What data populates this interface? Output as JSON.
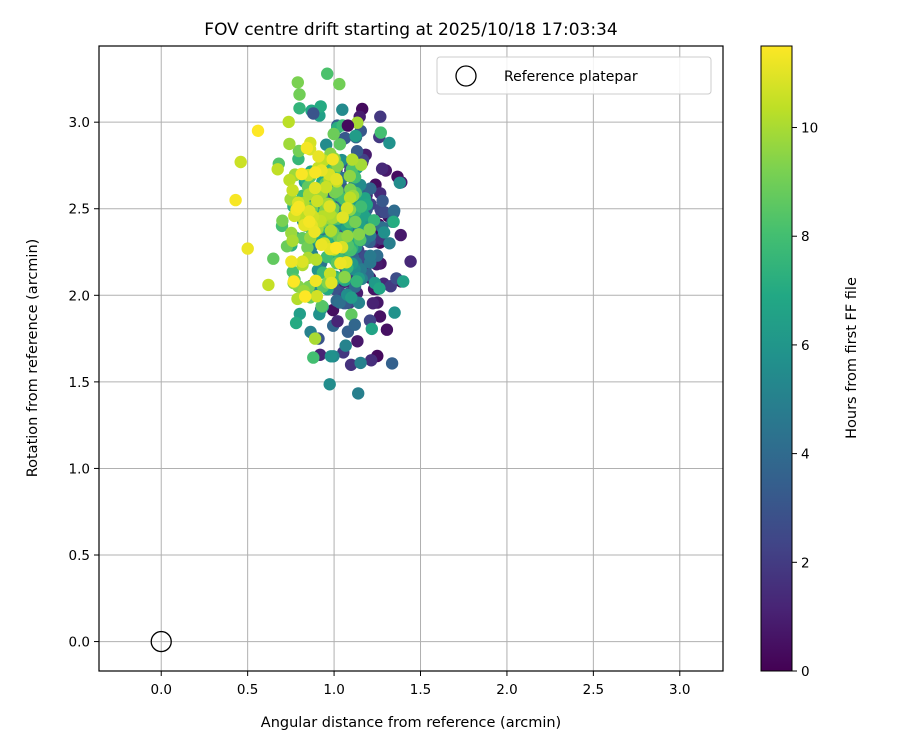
{
  "chart_data": {
    "type": "scatter",
    "title": "FOV centre drift starting at 2025/10/18 17:03:34",
    "xlabel": "Angular distance from reference (arcmin)",
    "ylabel": "Rotation from reference (arcmin)",
    "xlim": [
      -0.36,
      3.25
    ],
    "ylim": [
      -0.17,
      3.44
    ],
    "xticks": [
      "0.0",
      "0.5",
      "1.0",
      "1.5",
      "2.0",
      "2.5",
      "3.0"
    ],
    "yticks": [
      "0.0",
      "0.5",
      "1.0",
      "1.5",
      "2.0",
      "2.5",
      "3.0"
    ],
    "grid": true,
    "legend": {
      "placement": "top-right",
      "entries": [
        "Reference platepar"
      ]
    },
    "reference_point": {
      "x": 0.0,
      "y": 0.0
    },
    "colorbar": {
      "label": "Hours from first FF file",
      "range": [
        0,
        11.5
      ],
      "ticks": [
        "0",
        "2",
        "4",
        "6",
        "8",
        "10"
      ],
      "colormap": "viridis"
    },
    "cluster": {
      "point_count": 480,
      "x_center": 1.0,
      "x_spread": 0.18,
      "y_center": 2.4,
      "y_spread": 0.27
    },
    "highlighted_points": [
      {
        "x": 0.43,
        "y": 2.55,
        "hours": 11.4
      },
      {
        "x": 0.46,
        "y": 2.77,
        "hours": 10.6
      },
      {
        "x": 0.5,
        "y": 2.27,
        "hours": 11.2
      },
      {
        "x": 0.56,
        "y": 2.95,
        "hours": 11.5
      },
      {
        "x": 0.62,
        "y": 2.06,
        "hours": 10.5
      },
      {
        "x": 0.79,
        "y": 3.23,
        "hours": 9.2
      },
      {
        "x": 0.8,
        "y": 3.16,
        "hours": 9.0
      },
      {
        "x": 0.8,
        "y": 3.08,
        "hours": 7.5
      },
      {
        "x": 0.88,
        "y": 3.05,
        "hours": 3.0
      },
      {
        "x": 0.96,
        "y": 3.28,
        "hours": 8.2
      },
      {
        "x": 1.03,
        "y": 3.22,
        "hours": 9.0
      },
      {
        "x": 1.08,
        "y": 2.98,
        "hours": 0.3
      },
      {
        "x": 0.88,
        "y": 1.64,
        "hours": 8.0
      },
      {
        "x": 0.91,
        "y": 1.75,
        "hours": 3.0
      },
      {
        "x": 0.89,
        "y": 1.75,
        "hours": 10.0
      },
      {
        "x": 1.08,
        "y": 1.79,
        "hours": 3.5
      },
      {
        "x": 1.12,
        "y": 1.83,
        "hours": 3.8
      },
      {
        "x": 1.02,
        "y": 1.85,
        "hours": 1.2
      },
      {
        "x": 0.78,
        "y": 1.84,
        "hours": 7.0
      },
      {
        "x": 1.35,
        "y": 1.9,
        "hours": 5.8
      },
      {
        "x": 1.4,
        "y": 2.08,
        "hours": 6.5
      },
      {
        "x": 1.38,
        "y": 2.65,
        "hours": 5.5
      },
      {
        "x": 1.32,
        "y": 2.88,
        "hours": 5.8
      },
      {
        "x": 1.27,
        "y": 2.94,
        "hours": 8.0
      },
      {
        "x": 0.89,
        "y": 2.62,
        "hours": 11.0
      },
      {
        "x": 1.05,
        "y": 2.45,
        "hours": 11.0
      }
    ]
  }
}
